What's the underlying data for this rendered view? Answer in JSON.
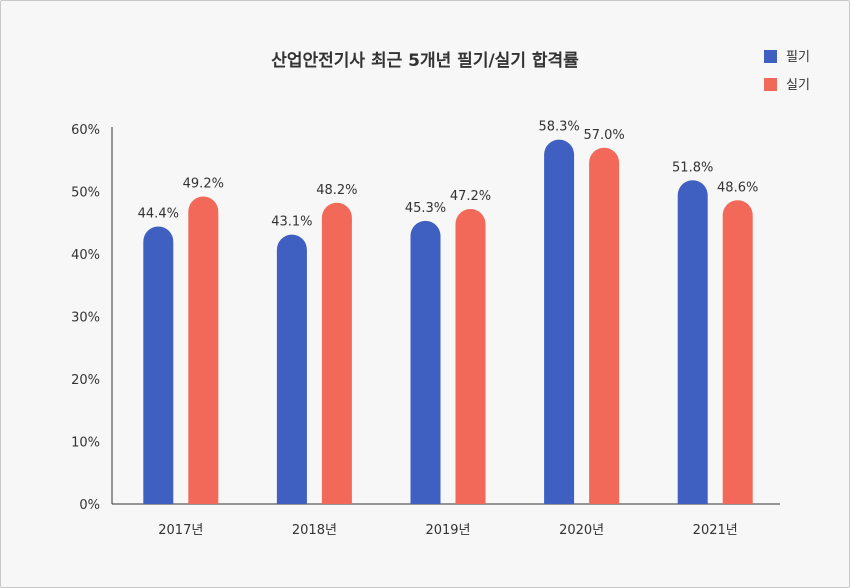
{
  "chart_data": {
    "type": "bar",
    "title": "산업안전기사 최근 5개년 필기/실기 합격률",
    "categories": [
      "2017년",
      "2018년",
      "2019년",
      "2020년",
      "2021년"
    ],
    "series": [
      {
        "name": "필기",
        "color": "#3f60c1",
        "values": [
          44.4,
          43.1,
          45.3,
          58.3,
          51.8
        ]
      },
      {
        "name": "실기",
        "color": "#f2695a",
        "values": [
          49.2,
          48.2,
          47.2,
          57.0,
          48.6
        ]
      }
    ],
    "ylim": [
      0,
      60
    ],
    "yticks": [
      "0%",
      "10%",
      "20%",
      "30%",
      "40%",
      "50%",
      "60%"
    ],
    "value_suffix": "%",
    "legend_position": "top-right",
    "grid": false
  }
}
